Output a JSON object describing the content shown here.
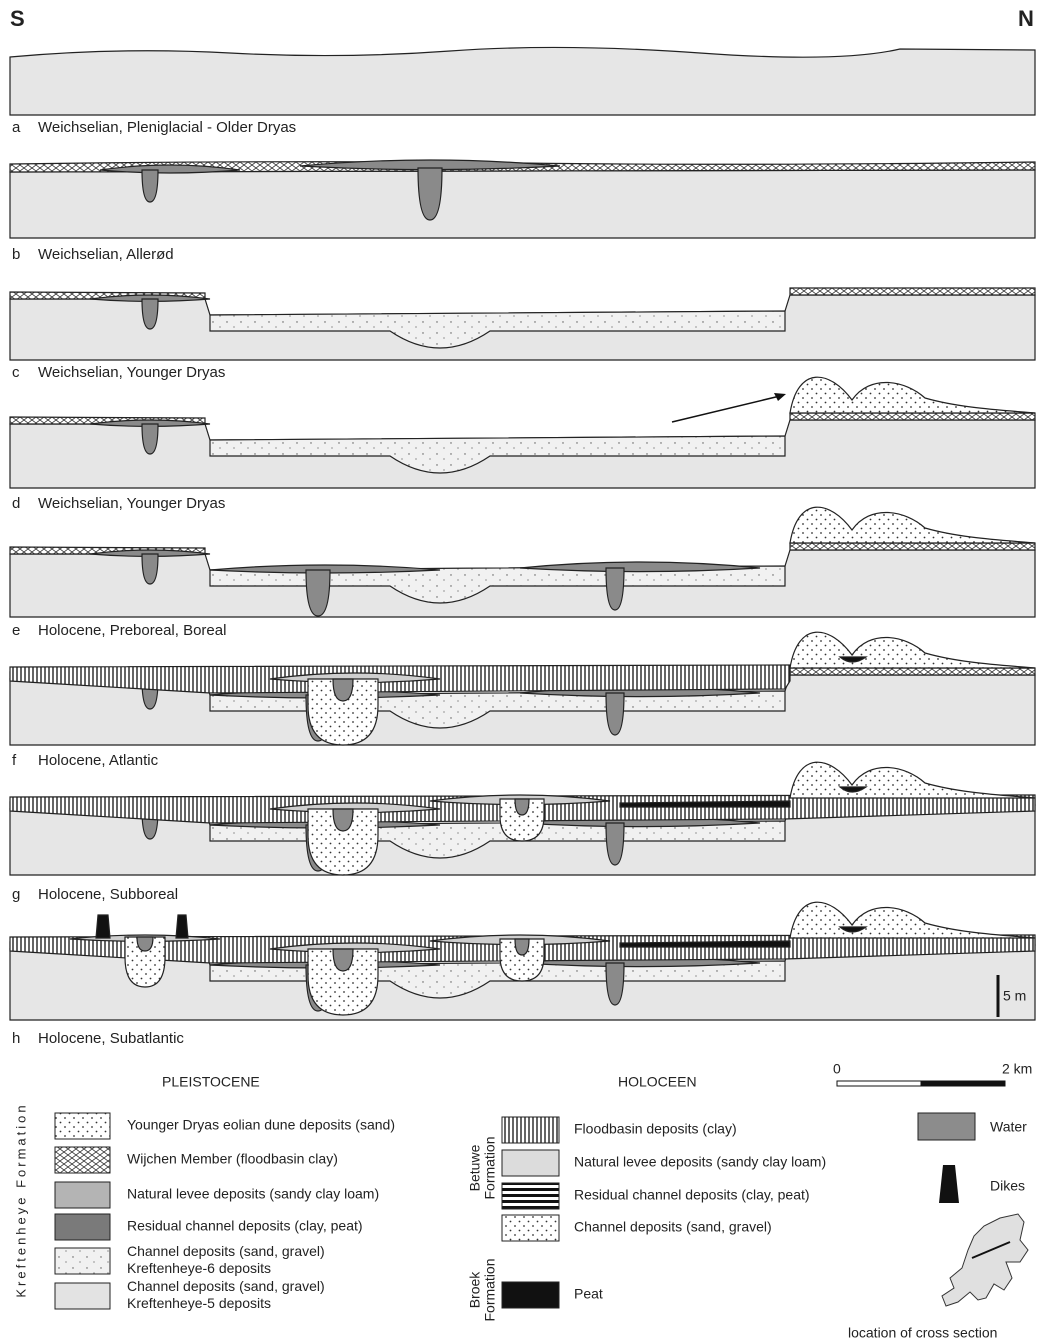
{
  "header": {
    "left": "S",
    "right": "N"
  },
  "panels": [
    {
      "letter": "a",
      "caption": "Weichselian, Pleniglacial - Older Dryas"
    },
    {
      "letter": "b",
      "caption": "Weichselian, Allerød"
    },
    {
      "letter": "c",
      "caption": "Weichselian, Younger Dryas"
    },
    {
      "letter": "d",
      "caption": "Weichselian, Younger Dryas"
    },
    {
      "letter": "e",
      "caption": "Holocene, Preboreal, Boreal"
    },
    {
      "letter": "f",
      "caption": "Holocene, Atlantic"
    },
    {
      "letter": "g",
      "caption": "Holocene, Subboreal"
    },
    {
      "letter": "h",
      "caption": "Holocene, Subatlantic"
    }
  ],
  "scale": {
    "vertical": "5 m",
    "start": "0",
    "end": "2 km"
  },
  "legend": {
    "pleistocene": {
      "title": "PLEISTOCENE",
      "formation": "Kreftenheye Formation",
      "items": [
        {
          "lines": [
            "Younger Dryas eolian dune deposits (sand)"
          ]
        },
        {
          "lines": [
            "Wijchen Member (floodbasin clay)"
          ]
        },
        {
          "lines": [
            "Natural levee deposits (sandy clay loam)"
          ]
        },
        {
          "lines": [
            "Residual channel deposits (clay, peat)"
          ]
        },
        {
          "lines": [
            "Channel deposits (sand, gravel)",
            "Kreftenheye-6 deposits"
          ]
        },
        {
          "lines": [
            "Channel deposits (sand, gravel)",
            "Kreftenheye-5 deposits"
          ]
        }
      ]
    },
    "holocene": {
      "title": "HOLOCEEN",
      "betuwe": {
        "formation": [
          "Betuwe",
          "Formation"
        ],
        "items": [
          "Floodbasin deposits (clay)",
          "Natural levee deposits (sandy clay loam)",
          "Residual channel deposits (clay, peat)",
          "Channel deposits (sand, gravel)"
        ]
      },
      "broek": {
        "formation": [
          "Broek",
          "Formation"
        ],
        "items": [
          "Peat"
        ]
      }
    },
    "other": [
      "Water",
      "Dikes"
    ],
    "map": "location of cross section"
  }
}
